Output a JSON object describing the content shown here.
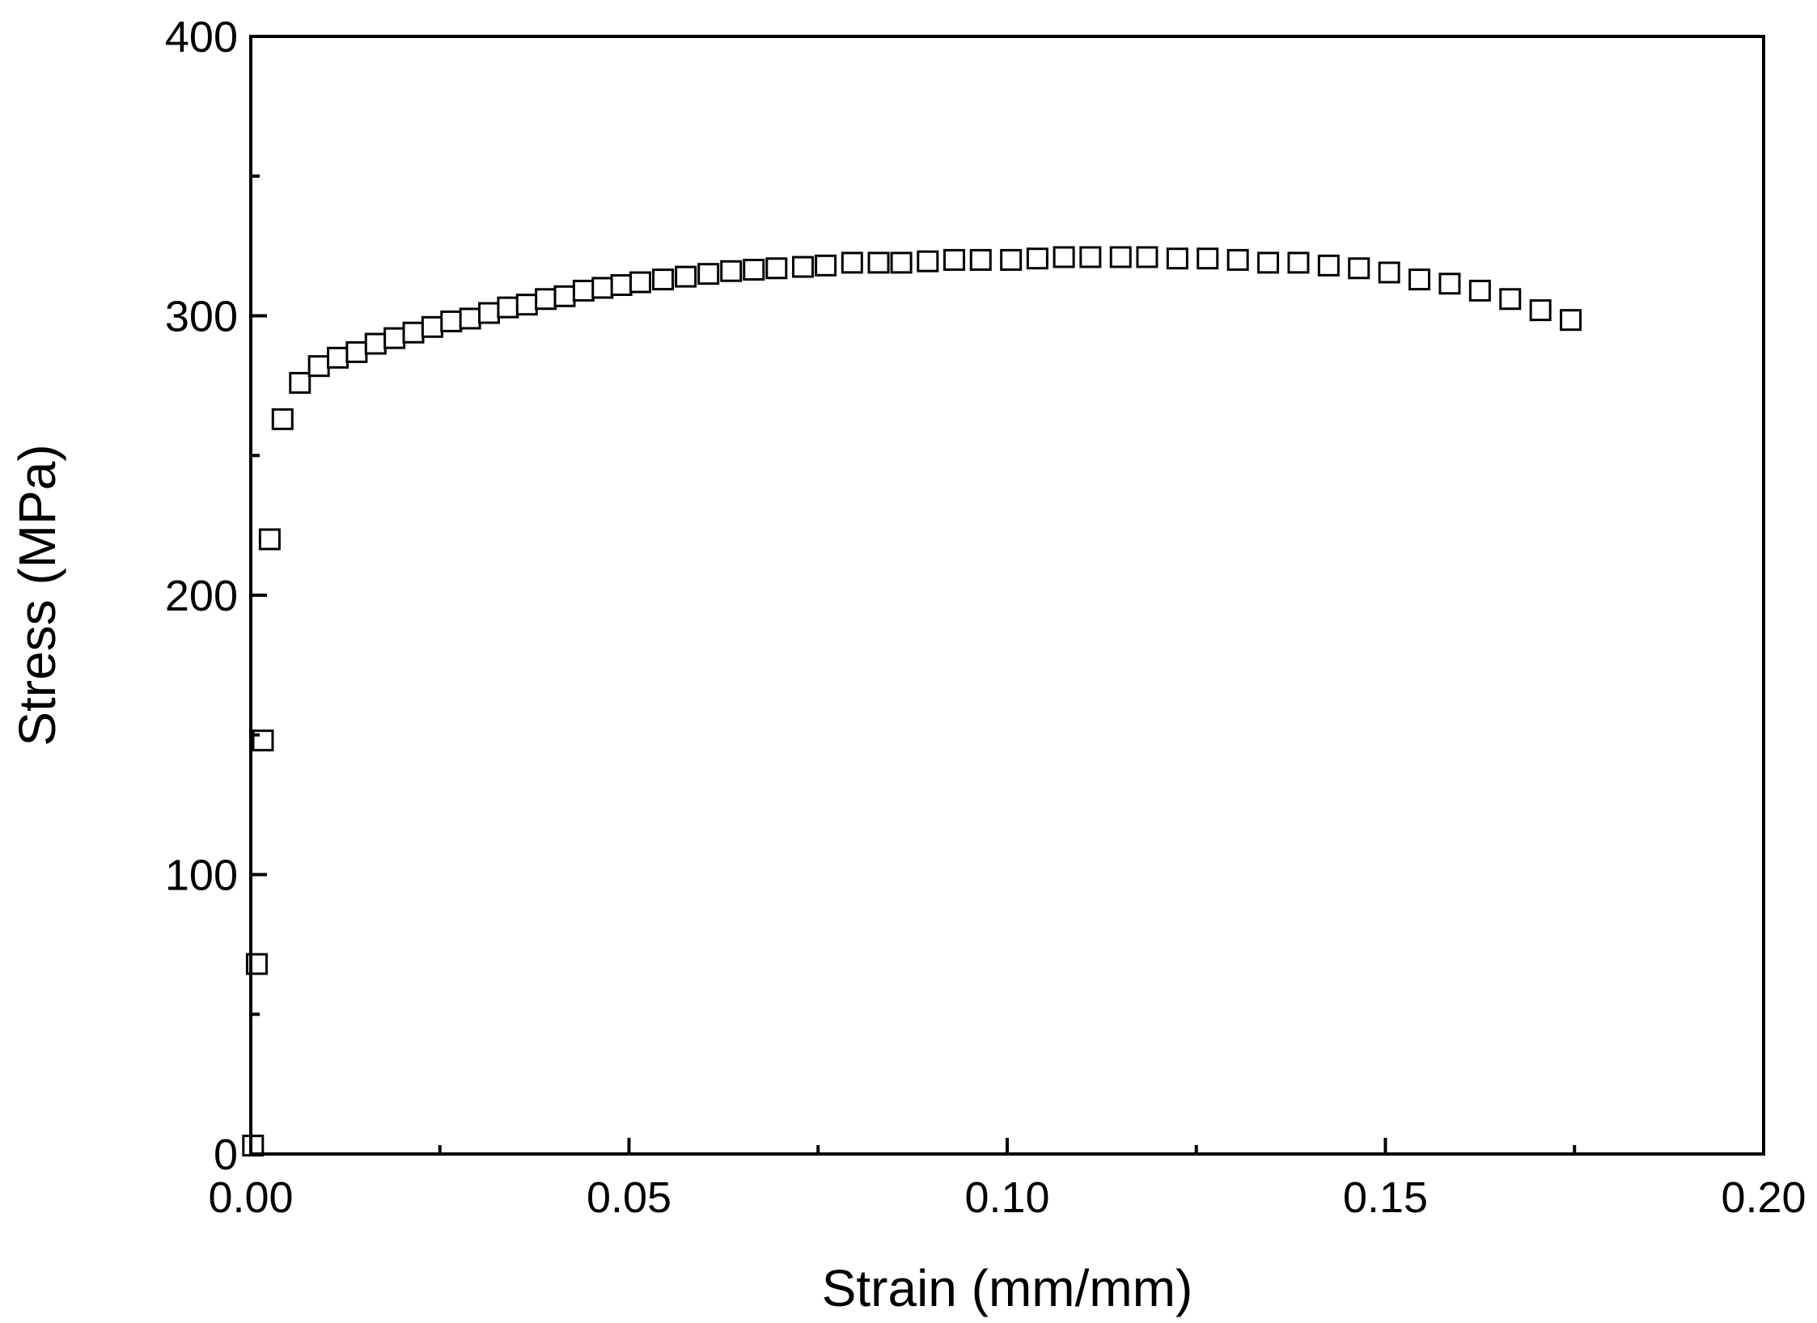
{
  "chart_data": {
    "type": "scatter",
    "title": "",
    "xlabel": "Strain (mm/mm)",
    "ylabel": "Stress (MPa)",
    "xlim": [
      0,
      0.2
    ],
    "ylim": [
      0,
      400
    ],
    "grid": false,
    "marker": "open-square",
    "marker_color": "#000000",
    "x_ticks": [
      0.0,
      0.05,
      0.1,
      0.15,
      0.2
    ],
    "x_tick_labels": [
      "0.00",
      "0.05",
      "0.10",
      "0.15",
      "0.20"
    ],
    "y_ticks": [
      0,
      100,
      200,
      300,
      400
    ],
    "y_tick_labels": [
      "0",
      "100",
      "200",
      "300",
      "400"
    ],
    "series": [
      {
        "points": [
          [
            0.0003,
            3
          ],
          [
            0.0008,
            68
          ],
          [
            0.0016,
            148
          ],
          [
            0.0025,
            220
          ],
          [
            0.0042,
            263
          ],
          [
            0.0065,
            276
          ],
          [
            0.009,
            282
          ],
          [
            0.0115,
            285
          ],
          [
            0.014,
            287
          ],
          [
            0.0165,
            290
          ],
          [
            0.019,
            292
          ],
          [
            0.0215,
            294
          ],
          [
            0.024,
            296
          ],
          [
            0.0265,
            298
          ],
          [
            0.029,
            299
          ],
          [
            0.0315,
            301
          ],
          [
            0.034,
            303
          ],
          [
            0.0365,
            304
          ],
          [
            0.039,
            306
          ],
          [
            0.0415,
            307
          ],
          [
            0.044,
            309
          ],
          [
            0.0465,
            310
          ],
          [
            0.049,
            311
          ],
          [
            0.0515,
            312
          ],
          [
            0.0545,
            313
          ],
          [
            0.0575,
            314
          ],
          [
            0.0605,
            315
          ],
          [
            0.0635,
            316
          ],
          [
            0.0665,
            316.5
          ],
          [
            0.0695,
            317
          ],
          [
            0.073,
            317.5
          ],
          [
            0.076,
            318
          ],
          [
            0.0795,
            319
          ],
          [
            0.083,
            319
          ],
          [
            0.086,
            319
          ],
          [
            0.0895,
            319.5
          ],
          [
            0.093,
            320
          ],
          [
            0.0965,
            320
          ],
          [
            0.1005,
            320
          ],
          [
            0.104,
            320.5
          ],
          [
            0.1075,
            321
          ],
          [
            0.111,
            321
          ],
          [
            0.115,
            321
          ],
          [
            0.1185,
            321
          ],
          [
            0.1225,
            320.5
          ],
          [
            0.1265,
            320.5
          ],
          [
            0.1305,
            320
          ],
          [
            0.1345,
            319
          ],
          [
            0.1385,
            319
          ],
          [
            0.1425,
            318
          ],
          [
            0.1465,
            317
          ],
          [
            0.1505,
            315.5
          ],
          [
            0.1545,
            313
          ],
          [
            0.1585,
            311.5
          ],
          [
            0.1625,
            309
          ],
          [
            0.1665,
            306
          ],
          [
            0.1705,
            302
          ],
          [
            0.1745,
            298.5
          ]
        ]
      }
    ]
  }
}
